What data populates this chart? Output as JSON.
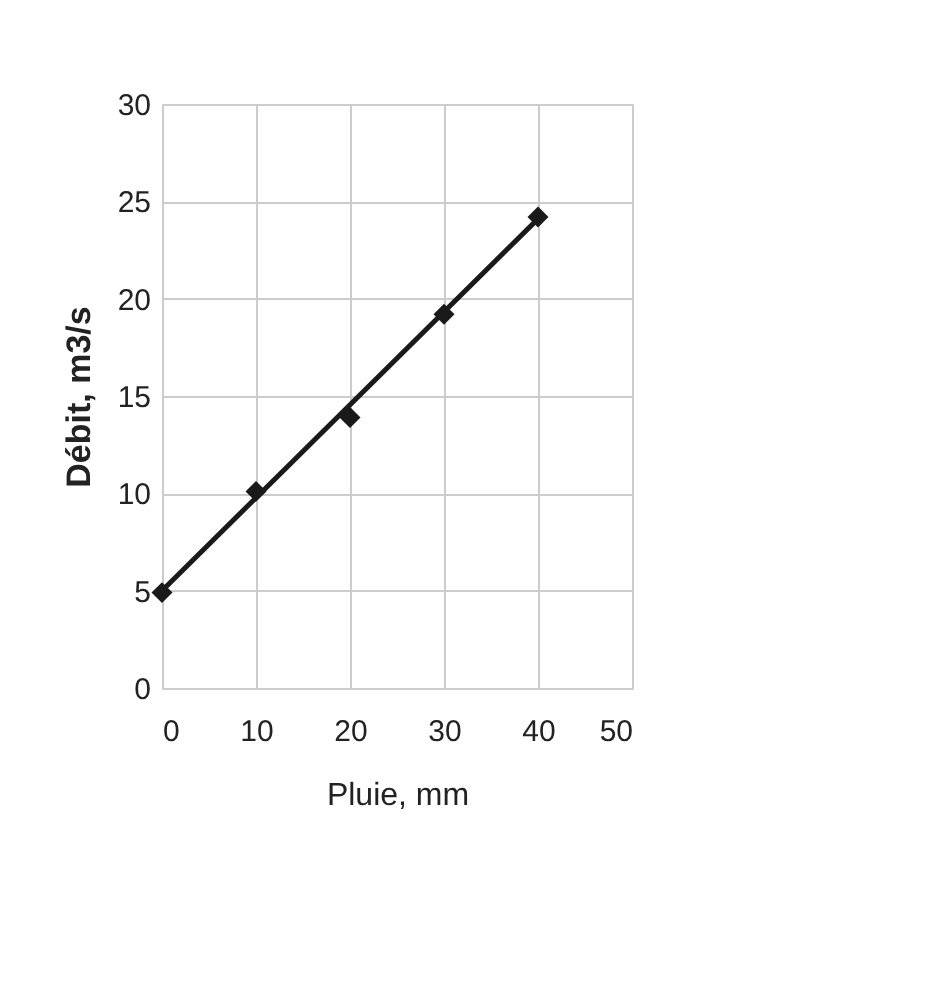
{
  "chart_data": {
    "type": "scatter",
    "xlabel": "Pluie, mm",
    "ylabel": "Débit,  m3/s",
    "xlim": [
      0,
      50
    ],
    "xticks": [
      0,
      10,
      20,
      30,
      40,
      50
    ],
    "ylim": [
      0,
      30
    ],
    "yticks": [
      0,
      5,
      10,
      15,
      20,
      25,
      30
    ],
    "grid": true,
    "marker": "diamond",
    "series": [
      {
        "color": "#1a1a1a",
        "x": [
          0,
          10,
          20,
          30,
          40
        ],
        "values": [
          4.9,
          10.1,
          13.9,
          19.2,
          24.2
        ]
      },
      {
        "type": "line",
        "color": "#1a1a1a",
        "line_style": "solid",
        "marker": "none",
        "x": [
          0,
          40
        ],
        "values": [
          5,
          24.1
        ]
      }
    ]
  }
}
